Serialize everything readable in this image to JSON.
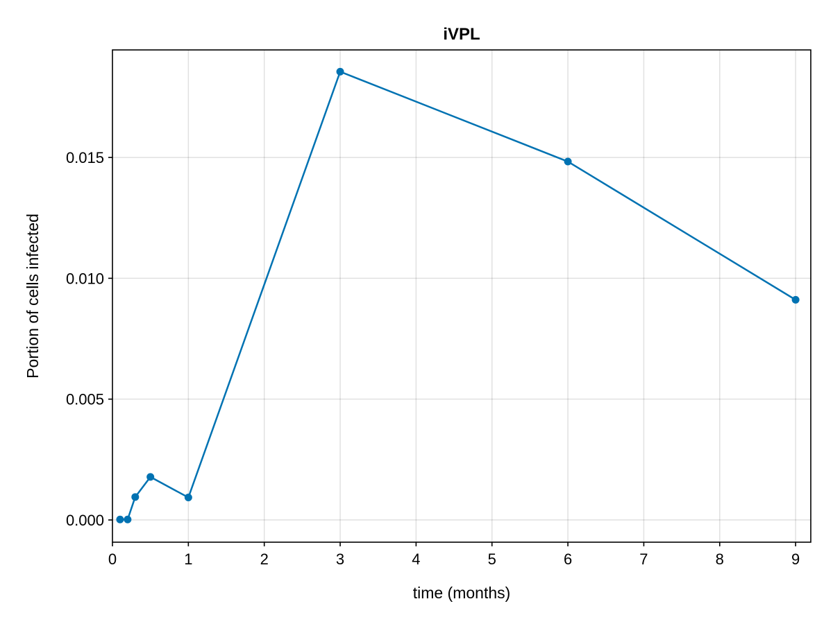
{
  "chart_data": {
    "type": "line",
    "title": "iVPL",
    "xlabel": "time (months)",
    "ylabel": "Portion of cells infected",
    "xlim": [
      0,
      9.2
    ],
    "ylim": [
      -0.00092,
      0.01945
    ],
    "xticks": [
      0,
      1,
      2,
      3,
      4,
      5,
      6,
      7,
      8,
      9
    ],
    "xtick_labels": [
      "0",
      "1",
      "2",
      "3",
      "4",
      "5",
      "6",
      "7",
      "8",
      "9"
    ],
    "yticks": [
      0.0,
      0.005,
      0.01,
      0.015
    ],
    "ytick_labels": [
      "0.000",
      "0.005",
      "0.010",
      "0.015"
    ],
    "grid": true,
    "legend": "none",
    "series": [
      {
        "color": "#0072b2",
        "markers": true,
        "x": [
          0.1,
          0.2,
          0.3,
          0.5,
          1,
          3,
          6,
          9
        ],
        "y": [
          2e-05,
          2e-05,
          0.00095,
          0.00178,
          0.00093,
          0.01855,
          0.01483,
          0.00911
        ]
      }
    ]
  }
}
